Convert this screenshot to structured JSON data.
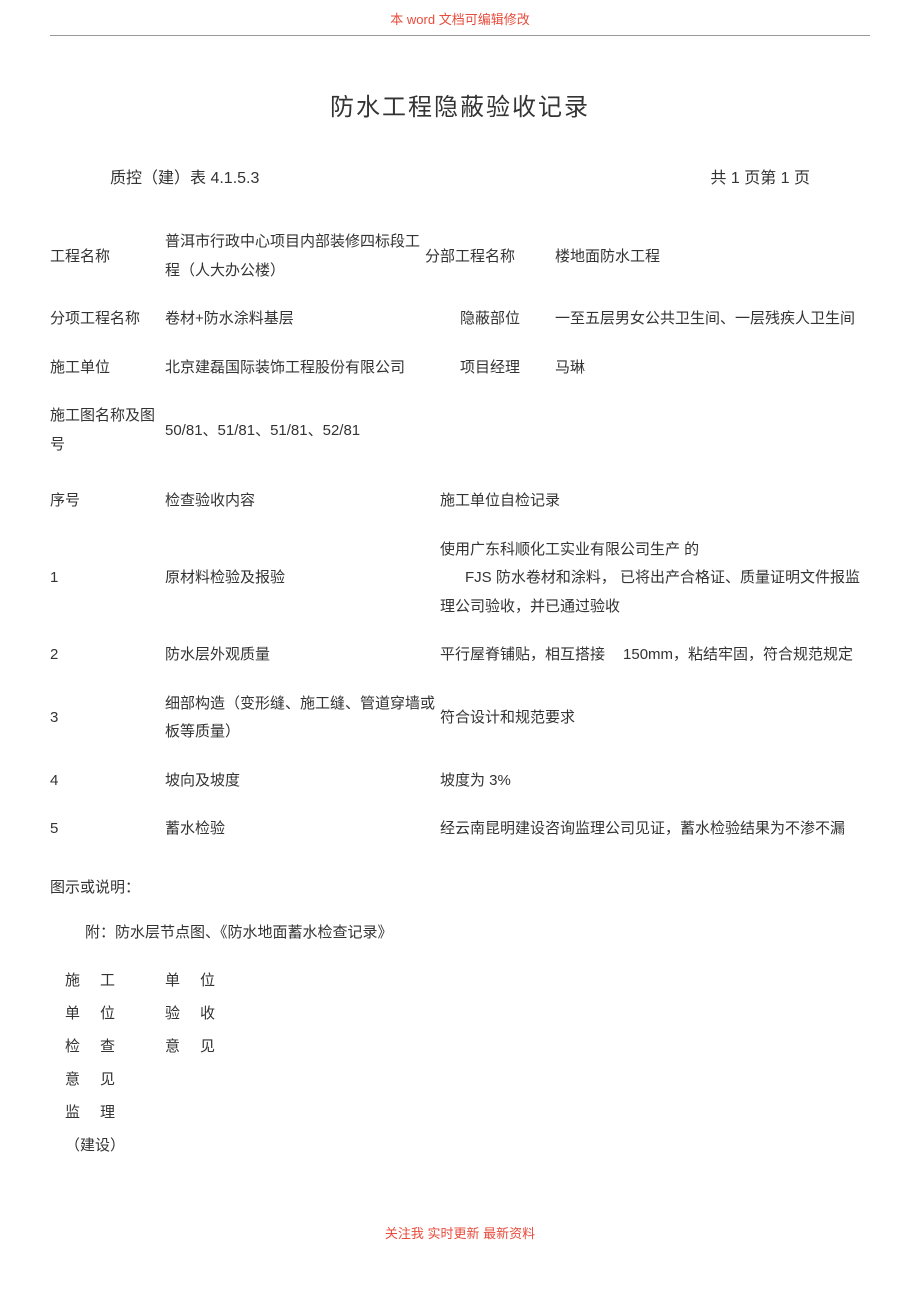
{
  "header_note": "本 word 文档可编辑修改",
  "title": "防水工程隐蔽验收记录",
  "form_code": "质控（建）表 4.1.5.3",
  "page_info": "共 1 页第 1 页",
  "fields": {
    "project_name_label": "工程名称",
    "project_name_value": "普洱市行政中心项目内部装修四标段工程（人大办公楼）",
    "sub_project_label": "分部工程名称",
    "sub_project_value": "楼地面防水工程",
    "item_project_label": "分项工程名称",
    "item_project_value": "卷材+防水涂料基层",
    "hidden_part_label": "隐蔽部位",
    "hidden_part_value": "一至五层男女公共卫生间、一层残疾人卫生间",
    "contractor_label": "施工单位",
    "contractor_value": "北京建磊国际装饰工程股份有限公司",
    "pm_label": "项目经理",
    "pm_value": "马琳",
    "drawing_label": "施工图名称及图号",
    "drawing_value": "50/81、51/81、51/81、52/81"
  },
  "table": {
    "col_seq": "序号",
    "col_content": "检查验收内容",
    "col_record": "施工单位自检记录",
    "rows": [
      {
        "seq": "1",
        "content": "原材料检验及报验",
        "record_pre": "使用广东科顺化工实业有限公司生产 的",
        "record_fjs": "FJS 防水卷材和涂料，",
        "record_post": "已将出产合格证、质量证明文件报监理公司验收，并已通过验收"
      },
      {
        "seq": "2",
        "content": "防水层外观质量",
        "record_pre": "平行屋脊铺贴，相互搭接",
        "record_mm": "150mm，粘结牢固，符合规范规定"
      },
      {
        "seq": "3",
        "content": "细部构造（变形缝、施工缝、管道穿墙或板等质量）",
        "record": "符合设计和规范要求"
      },
      {
        "seq": "4",
        "content": "坡向及坡度",
        "record": "坡度为 3%"
      },
      {
        "seq": "5",
        "content": "蓄水检验",
        "record": "经云南昆明建设咨询监理公司见证，蓄水检验结果为不渗不漏"
      }
    ]
  },
  "illustration_label": "图示或说明：",
  "attachment": "附：防水层节点图、《防水地面蓄水检查记录》",
  "sig": {
    "r1c1": "施工",
    "r1c2": "单位",
    "r2c1": "单位",
    "r2c2": "验收",
    "r3c1": "检查",
    "r3c2": "意见",
    "r4": "意见",
    "r5": "监理",
    "r6": "（建设）"
  },
  "footer_note": "关注我 实时更新 最新资料"
}
